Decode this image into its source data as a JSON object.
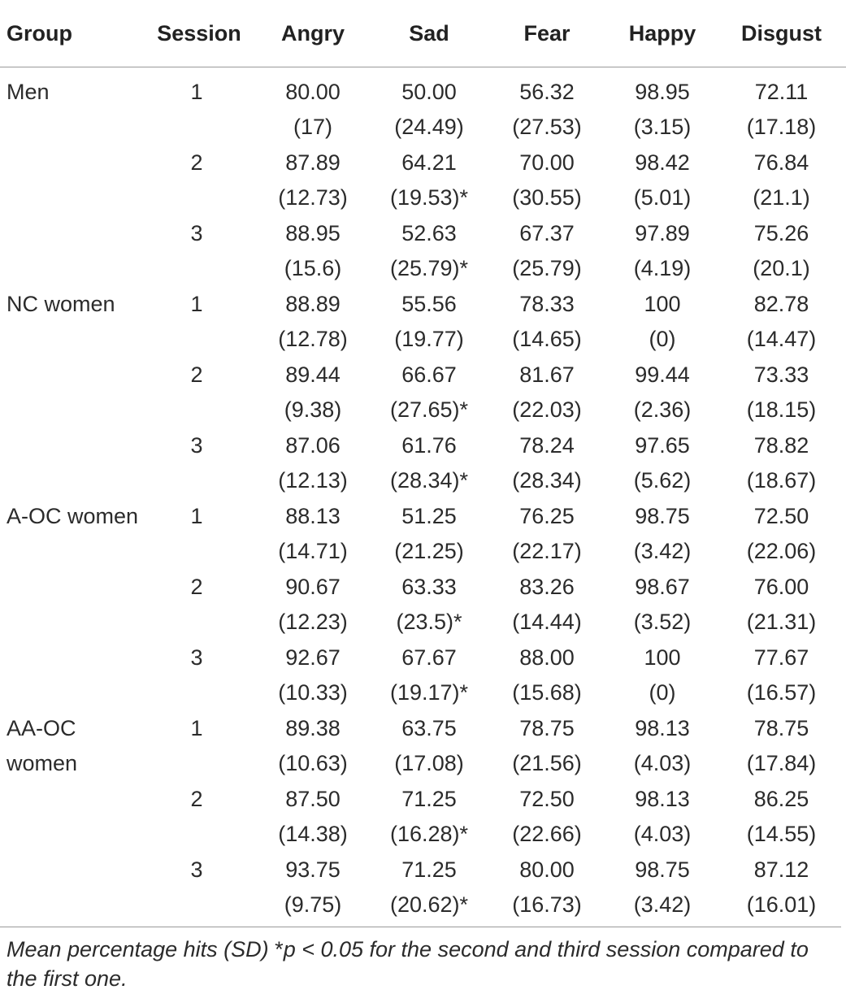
{
  "columns": [
    "Group",
    "Session",
    "Angry",
    "Sad",
    "Fear",
    "Happy",
    "Disgust"
  ],
  "rows": [
    {
      "group": "Men",
      "session": "1",
      "cells": [
        [
          "80.00",
          "(17)"
        ],
        [
          "50.00",
          "(24.49)"
        ],
        [
          "56.32",
          "(27.53)"
        ],
        [
          "98.95",
          "(3.15)"
        ],
        [
          "72.11",
          "(17.18)"
        ]
      ]
    },
    {
      "group": "",
      "session": "2",
      "cells": [
        [
          "87.89",
          "(12.73)"
        ],
        [
          "64.21",
          "(19.53)*"
        ],
        [
          "70.00",
          "(30.55)"
        ],
        [
          "98.42",
          "(5.01)"
        ],
        [
          "76.84",
          "(21.1)"
        ]
      ]
    },
    {
      "group": "",
      "session": "3",
      "cells": [
        [
          "88.95",
          "(15.6)"
        ],
        [
          "52.63",
          "(25.79)*"
        ],
        [
          "67.37",
          "(25.79)"
        ],
        [
          "97.89",
          "(4.19)"
        ],
        [
          "75.26",
          "(20.1)"
        ]
      ]
    },
    {
      "group": "NC women",
      "session": "1",
      "cells": [
        [
          "88.89",
          "(12.78)"
        ],
        [
          "55.56",
          "(19.77)"
        ],
        [
          "78.33",
          "(14.65)"
        ],
        [
          "100",
          "(0)"
        ],
        [
          "82.78",
          "(14.47)"
        ]
      ]
    },
    {
      "group": "",
      "session": "2",
      "cells": [
        [
          "89.44",
          "(9.38)"
        ],
        [
          "66.67",
          "(27.65)*"
        ],
        [
          "81.67",
          "(22.03)"
        ],
        [
          "99.44",
          "(2.36)"
        ],
        [
          "73.33",
          "(18.15)"
        ]
      ]
    },
    {
      "group": "",
      "session": "3",
      "cells": [
        [
          "87.06",
          "(12.13)"
        ],
        [
          "61.76",
          "(28.34)*"
        ],
        [
          "78.24",
          "(28.34)"
        ],
        [
          "97.65",
          "(5.62)"
        ],
        [
          "78.82",
          "(18.67)"
        ]
      ]
    },
    {
      "group": "A-OC women",
      "session": "1",
      "cells": [
        [
          "88.13",
          "(14.71)"
        ],
        [
          "51.25",
          "(21.25)"
        ],
        [
          "76.25",
          "(22.17)"
        ],
        [
          "98.75",
          "(3.42)"
        ],
        [
          "72.50",
          "(22.06)"
        ]
      ]
    },
    {
      "group": "",
      "session": "2",
      "cells": [
        [
          "90.67",
          "(12.23)"
        ],
        [
          "63.33",
          "(23.5)*"
        ],
        [
          "83.26",
          "(14.44)"
        ],
        [
          "98.67",
          "(3.52)"
        ],
        [
          "76.00",
          "(21.31)"
        ]
      ]
    },
    {
      "group": "",
      "session": "3",
      "cells": [
        [
          "92.67",
          "(10.33)"
        ],
        [
          "67.67",
          "(19.17)*"
        ],
        [
          "88.00",
          "(15.68)"
        ],
        [
          "100",
          "(0)"
        ],
        [
          "77.67",
          "(16.57)"
        ]
      ]
    },
    {
      "group": "AA-OC women",
      "session": "1",
      "cells": [
        [
          "89.38",
          "(10.63)"
        ],
        [
          "63.75",
          "(17.08)"
        ],
        [
          "78.75",
          "(21.56)"
        ],
        [
          "98.13",
          "(4.03)"
        ],
        [
          "78.75",
          "(17.84)"
        ]
      ]
    },
    {
      "group": "",
      "session": "2",
      "cells": [
        [
          "87.50",
          "(14.38)"
        ],
        [
          "71.25",
          "(16.28)*"
        ],
        [
          "72.50",
          "(22.66)"
        ],
        [
          "98.13",
          "(4.03)"
        ],
        [
          "86.25",
          "(14.55)"
        ]
      ]
    },
    {
      "group": "",
      "session": "3",
      "cells": [
        [
          "93.75",
          "(9.75)"
        ],
        [
          "71.25",
          "(20.62)*"
        ],
        [
          "80.00",
          "(16.73)"
        ],
        [
          "98.75",
          "(3.42)"
        ],
        [
          "87.12",
          "(16.01)"
        ]
      ]
    }
  ],
  "footnote": {
    "part1": "Mean percentage hits (SD) ",
    "star": "*",
    "part2": "p < 0.05 for the second and third session compared to the first one."
  }
}
